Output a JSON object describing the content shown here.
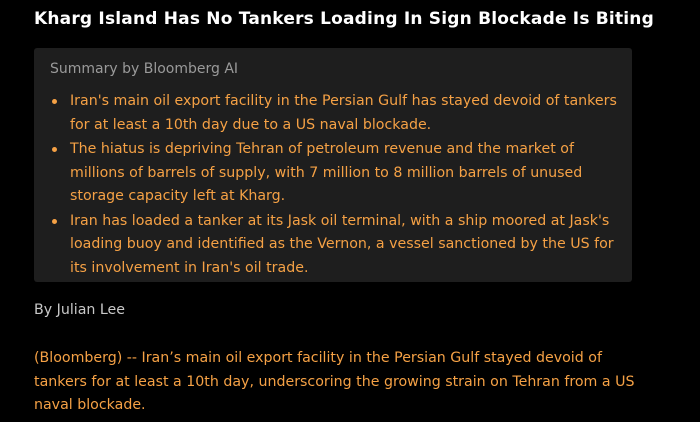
{
  "header": {
    "title": "Kharg Island Has No Tankers Loading In Sign Blockade Is Biting"
  },
  "summary": {
    "label": "Summary by Bloomberg AI",
    "bullets": [
      "Iran's main oil export facility in the Persian Gulf has stayed devoid of tankers for at least a 10th day due to a US naval blockade.",
      "The hiatus is depriving Tehran of petroleum revenue and the market of millions of barrels of supply, with 7 million to 8 million barrels of unused storage capacity left at Kharg.",
      "Iran has loaded a tanker at its Jask oil terminal, with a ship moored at Jask's loading buoy and identified as the Vernon, a vessel sanctioned by the US for its involvement in Iran's oil trade."
    ]
  },
  "byline": "By Julian Lee",
  "body": "(Bloomberg) -- Iran’s main oil export facility in the Persian Gulf stayed devoid of tankers for at least a 10th day, underscoring the growing strain on Tehran from a US naval blockade."
}
